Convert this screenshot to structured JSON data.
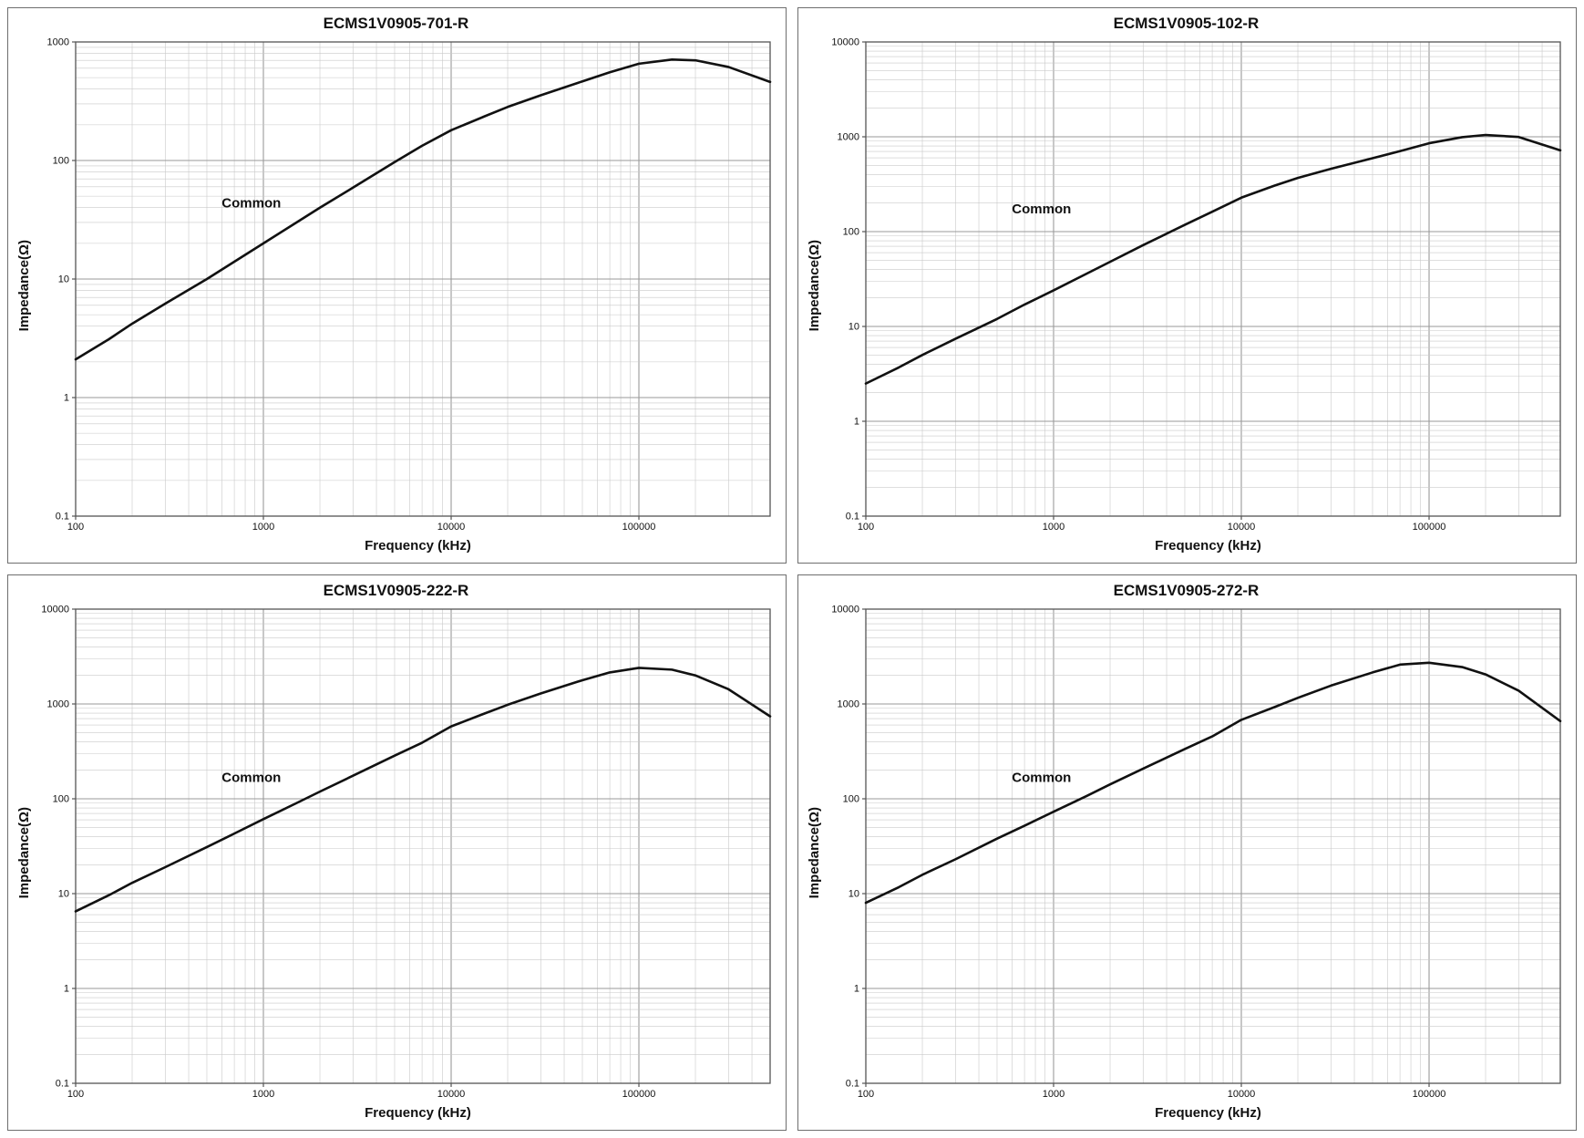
{
  "colors": {
    "curve": "#111111",
    "grid_major": "#9a9a9a",
    "grid_minor": "#c9c9c9",
    "frame": "#555555",
    "text": "#111111"
  },
  "chart_data": [
    {
      "type": "line",
      "title": "ECMS1V0905-701-R",
      "xlabel": "Frequency (kHz)",
      "ylabel": "Impedance(Ω)",
      "x_scale": "log",
      "y_scale": "log",
      "grid": true,
      "xlim": [
        100,
        500000
      ],
      "ylim": [
        0.1,
        1000
      ],
      "x_ticks": [
        100,
        1000,
        10000,
        100000
      ],
      "y_ticks": [
        0.1,
        1,
        10,
        100,
        1000
      ],
      "series": [
        {
          "name": "Common",
          "x": [
            100,
            150,
            200,
            300,
            500,
            700,
            1000,
            1500,
            2000,
            3000,
            5000,
            7000,
            10000,
            15000,
            20000,
            30000,
            50000,
            70000,
            100000,
            150000,
            200000,
            300000,
            500000
          ],
          "y": [
            2.1,
            3.1,
            4.2,
            6.2,
            10,
            14,
            20,
            30,
            40,
            59,
            97,
            133,
            180,
            235,
            283,
            355,
            465,
            555,
            655,
            710,
            700,
            615,
            460
          ]
        }
      ],
      "annotation": {
        "text": "Common",
        "x": 600,
        "y": 40
      }
    },
    {
      "type": "line",
      "title": "ECMS1V0905-102-R",
      "xlabel": "Frequency (kHz)",
      "ylabel": "Impedance(Ω)",
      "x_scale": "log",
      "y_scale": "log",
      "grid": true,
      "xlim": [
        100,
        500000
      ],
      "ylim": [
        0.1,
        10000
      ],
      "x_ticks": [
        100,
        1000,
        10000,
        100000
      ],
      "y_ticks": [
        0.1,
        1,
        10,
        100,
        1000,
        10000
      ],
      "series": [
        {
          "name": "Common",
          "x": [
            100,
            150,
            200,
            300,
            500,
            700,
            1000,
            1500,
            2000,
            3000,
            5000,
            7000,
            10000,
            15000,
            20000,
            30000,
            50000,
            70000,
            100000,
            150000,
            200000,
            300000,
            500000
          ],
          "y": [
            2.5,
            3.7,
            5.0,
            7.4,
            12,
            17,
            24,
            36,
            48,
            72,
            118,
            162,
            228,
            305,
            368,
            460,
            595,
            705,
            855,
            990,
            1045,
            995,
            720
          ]
        }
      ],
      "annotation": {
        "text": "Common",
        "x": 600,
        "y": 155
      }
    },
    {
      "type": "line",
      "title": "ECMS1V0905-222-R",
      "xlabel": "Frequency (kHz)",
      "ylabel": "Impedance(Ω)",
      "x_scale": "log",
      "y_scale": "log",
      "grid": true,
      "xlim": [
        100,
        500000
      ],
      "ylim": [
        0.1,
        10000
      ],
      "x_ticks": [
        100,
        1000,
        10000,
        100000
      ],
      "y_ticks": [
        0.1,
        1,
        10,
        100,
        1000,
        10000
      ],
      "series": [
        {
          "name": "Common",
          "x": [
            100,
            150,
            200,
            300,
            500,
            700,
            1000,
            1500,
            2000,
            3000,
            5000,
            7000,
            10000,
            15000,
            20000,
            30000,
            50000,
            70000,
            100000,
            150000,
            200000,
            300000,
            500000
          ],
          "y": [
            6.5,
            9.6,
            13,
            19,
            31,
            43,
            61,
            90,
            119,
            175,
            285,
            390,
            580,
            790,
            980,
            1290,
            1780,
            2150,
            2400,
            2300,
            2000,
            1430,
            740
          ]
        }
      ],
      "annotation": {
        "text": "Common",
        "x": 600,
        "y": 150
      }
    },
    {
      "type": "line",
      "title": "ECMS1V0905-272-R",
      "xlabel": "Frequency (kHz)",
      "ylabel": "Impedance(Ω)",
      "x_scale": "log",
      "y_scale": "log",
      "grid": true,
      "xlim": [
        100,
        500000
      ],
      "ylim": [
        0.1,
        10000
      ],
      "x_ticks": [
        100,
        1000,
        10000,
        100000
      ],
      "y_ticks": [
        0.1,
        1,
        10,
        100,
        1000,
        10000
      ],
      "series": [
        {
          "name": "Common",
          "x": [
            100,
            150,
            200,
            300,
            500,
            700,
            1000,
            1500,
            2000,
            3000,
            5000,
            7000,
            10000,
            15000,
            20000,
            30000,
            50000,
            70000,
            100000,
            150000,
            200000,
            300000,
            500000
          ],
          "y": [
            8,
            11.7,
            15.8,
            23,
            38,
            52,
            73,
            107,
            142,
            208,
            335,
            455,
            680,
            925,
            1160,
            1560,
            2150,
            2600,
            2720,
            2450,
            2050,
            1380,
            660
          ]
        }
      ],
      "annotation": {
        "text": "Common",
        "x": 600,
        "y": 150
      }
    }
  ]
}
